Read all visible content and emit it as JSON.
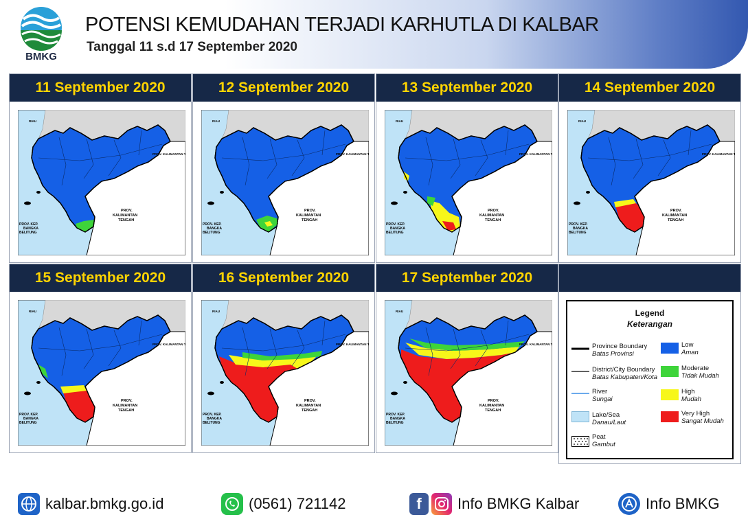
{
  "header": {
    "logo_label": "BMKG",
    "title": "POTENSI KEMUDAHAN TERJADI KARHUTLA DI KALBAR",
    "subtitle": "Tanggal  11 s.d 17 September 2020"
  },
  "panels": [
    {
      "date": "11 September 2020",
      "risk": "low"
    },
    {
      "date": "12 September 2020",
      "risk": "low2"
    },
    {
      "date": "13 September 2020",
      "risk": "mid"
    },
    {
      "date": "14 September 2020",
      "risk": "south_red"
    },
    {
      "date": "15 September 2020",
      "risk": "south_red2"
    },
    {
      "date": "16 September 2020",
      "risk": "wide_red"
    },
    {
      "date": "17 September 2020",
      "risk": "wider_red"
    }
  ],
  "map_labels": {
    "prov_kaltim": "PROV. KALIMANTAN TIMUR",
    "prov_kalteng_1": "PROV.",
    "prov_kalteng_2": "KALIMANTAN",
    "prov_kalteng_3": "TENGAH",
    "prov_babel_1": "PROV. KEP.",
    "prov_babel_2": "BANGKA",
    "prov_babel_3": "BELITUNG",
    "prov_riau": "RIAU"
  },
  "legend": {
    "title": "Legend",
    "subtitle": "Keterangan",
    "lines": [
      {
        "en": "Province Boundary",
        "id": "Batas Provinsi"
      },
      {
        "en": "District/City Boundary",
        "id": "Batas Kabupaten/Kota"
      },
      {
        "en": "River",
        "id": "Sungai"
      },
      {
        "en": "Lake/Sea",
        "id": "Danau/Laut"
      },
      {
        "en": "Peat",
        "id": "Gambut"
      }
    ],
    "classes": [
      {
        "en": "Low",
        "id": "Aman",
        "color": "#1560e6"
      },
      {
        "en": "Moderate",
        "id": "Tidak Mudah",
        "color": "#3ed43a"
      },
      {
        "en": "High",
        "id": "Mudah",
        "color": "#f7f71a"
      },
      {
        "en": "Very High",
        "id": "Sangat Mudah",
        "color": "#ee1c1c"
      }
    ]
  },
  "footer": {
    "website": "kalbar.bmkg.go.id",
    "phone": "(0561) 721142",
    "social": "Info BMKG Kalbar",
    "app": "Info BMKG"
  },
  "colors": {
    "header_bar": "#162847",
    "date_text": "#ffd400",
    "sea": "#bfe3f7",
    "neighbor": "#ffffff",
    "malaysia": "#d8d8d8"
  }
}
